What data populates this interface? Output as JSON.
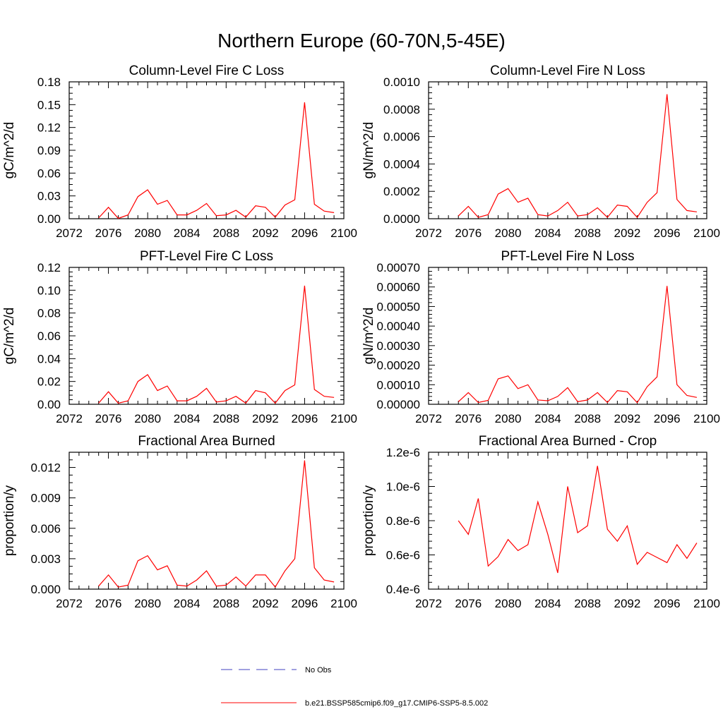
{
  "title": "Northern Europe (60-70N,5-45E)",
  "legend": {
    "placement": "bottom",
    "entries": [
      {
        "label": "No Obs",
        "color": "#4040c0",
        "style": "dashed"
      },
      {
        "label": "b.e21.BSSP585cmip6.f09_g17.CMIP6-SSP5-8.5.002",
        "color": "#ff0000",
        "style": "solid"
      }
    ]
  },
  "chart_data": [
    {
      "type": "line",
      "title": "Column-Level Fire C Loss",
      "ylabel": "gC/m^2/d",
      "xlim": [
        2072,
        2100
      ],
      "ylim": [
        0,
        0.18
      ],
      "xticks": [
        "2072",
        "2076",
        "2080",
        "2084",
        "2088",
        "2092",
        "2096",
        "2100"
      ],
      "yticks": [
        "0.00",
        "0.03",
        "0.06",
        "0.09",
        "0.12",
        "0.15",
        "0.18"
      ],
      "yminor": 3,
      "color": "#ff0000",
      "x": [
        2075,
        2076,
        2077,
        2078,
        2079,
        2080,
        2081,
        2082,
        2083,
        2084,
        2085,
        2086,
        2087,
        2088,
        2089,
        2090,
        2091,
        2092,
        2093,
        2094,
        2095,
        2096,
        2097,
        2098,
        2099
      ],
      "y": [
        0.001,
        0.015,
        0.0005,
        0.005,
        0.029,
        0.038,
        0.019,
        0.024,
        0.005,
        0.005,
        0.011,
        0.02,
        0.004,
        0.005,
        0.011,
        0.002,
        0.017,
        0.015,
        0.002,
        0.018,
        0.025,
        0.153,
        0.019,
        0.01,
        0.008
      ]
    },
    {
      "type": "line",
      "title": "Column-Level Fire N Loss",
      "ylabel": "gN/m^2/d",
      "xlim": [
        2072,
        2100
      ],
      "ylim": [
        0,
        0.001
      ],
      "xticks": [
        "2072",
        "2076",
        "2080",
        "2084",
        "2088",
        "2092",
        "2096",
        "2100"
      ],
      "yticks": [
        "0.0000",
        "0.0002",
        "0.0004",
        "0.0006",
        "0.0008",
        "0.0010"
      ],
      "yminor": 4,
      "color": "#ff0000",
      "x": [
        2075,
        2076,
        2077,
        2078,
        2079,
        2080,
        2081,
        2082,
        2083,
        2084,
        2085,
        2086,
        2087,
        2088,
        2089,
        2090,
        2091,
        2092,
        2093,
        2094,
        2095,
        2096,
        2097,
        2098,
        2099
      ],
      "y": [
        2e-05,
        9e-05,
        1e-05,
        3e-05,
        0.00018,
        0.00022,
        0.00012,
        0.00015,
        3e-05,
        2e-05,
        6e-05,
        0.00012,
        2e-05,
        3e-05,
        8e-05,
        1e-05,
        0.0001,
        9e-05,
        1e-05,
        0.00012,
        0.00019,
        0.00091,
        0.00014,
        6e-05,
        5e-05
      ]
    },
    {
      "type": "line",
      "title": "PFT-Level Fire C Loss",
      "ylabel": "gC/m^2/d",
      "xlim": [
        2072,
        2100
      ],
      "ylim": [
        0,
        0.12
      ],
      "xticks": [
        "2072",
        "2076",
        "2080",
        "2084",
        "2088",
        "2092",
        "2096",
        "2100"
      ],
      "yticks": [
        "0.00",
        "0.02",
        "0.04",
        "0.06",
        "0.08",
        "0.10",
        "0.12"
      ],
      "yminor": 4,
      "color": "#ff0000",
      "x": [
        2075,
        2076,
        2077,
        2078,
        2079,
        2080,
        2081,
        2082,
        2083,
        2084,
        2085,
        2086,
        2087,
        2088,
        2089,
        2090,
        2091,
        2092,
        2093,
        2094,
        2095,
        2096,
        2097,
        2098,
        2099
      ],
      "y": [
        0.001,
        0.011,
        0.001,
        0.003,
        0.02,
        0.026,
        0.012,
        0.016,
        0.003,
        0.003,
        0.007,
        0.014,
        0.002,
        0.003,
        0.007,
        0.001,
        0.012,
        0.01,
        0.001,
        0.012,
        0.017,
        0.104,
        0.013,
        0.007,
        0.006
      ]
    },
    {
      "type": "line",
      "title": "PFT-Level Fire N Loss",
      "ylabel": "gN/m^2/d",
      "xlim": [
        2072,
        2100
      ],
      "ylim": [
        0,
        0.0007
      ],
      "xticks": [
        "2072",
        "2076",
        "2080",
        "2084",
        "2088",
        "2092",
        "2096",
        "2100"
      ],
      "yticks": [
        "0.00000",
        "0.00010",
        "0.00020",
        "0.00030",
        "0.00040",
        "0.00050",
        "0.00060",
        "0.00070"
      ],
      "yminor": 4,
      "color": "#ff0000",
      "x": [
        2075,
        2076,
        2077,
        2078,
        2079,
        2080,
        2081,
        2082,
        2083,
        2084,
        2085,
        2086,
        2087,
        2088,
        2089,
        2090,
        2091,
        2092,
        2093,
        2094,
        2095,
        2096,
        2097,
        2098,
        2099
      ],
      "y": [
        1.3e-05,
        6e-05,
        9e-06,
        2e-05,
        0.00013,
        0.000145,
        8e-05,
        0.0001,
        2.2e-05,
        1.8e-05,
        4e-05,
        8.5e-05,
        1.3e-05,
        2.2e-05,
        6e-05,
        9e-06,
        7e-05,
        6.4e-05,
        8e-06,
        9e-05,
        0.00014,
        0.000605,
        0.0001,
        4.5e-05,
        3.5e-05
      ]
    },
    {
      "type": "line",
      "title": "Fractional Area Burned",
      "ylabel": "proportion/y",
      "xlim": [
        2072,
        2100
      ],
      "ylim": [
        0,
        0.0135
      ],
      "xticks": [
        "2072",
        "2076",
        "2080",
        "2084",
        "2088",
        "2092",
        "2096",
        "2100"
      ],
      "yticks": [
        "0.000",
        "0.003",
        "0.006",
        "0.009",
        "0.012"
      ],
      "ytickvals": [
        0,
        0.003,
        0.006,
        0.009,
        0.012
      ],
      "yminor": 3,
      "color": "#ff0000",
      "x": [
        2075,
        2076,
        2077,
        2078,
        2079,
        2080,
        2081,
        2082,
        2083,
        2084,
        2085,
        2086,
        2087,
        2088,
        2089,
        2090,
        2091,
        2092,
        2093,
        2094,
        2095,
        2096,
        2097,
        2098,
        2099
      ],
      "y": [
        0.0003,
        0.0014,
        0.0002,
        0.0004,
        0.0028,
        0.0033,
        0.0019,
        0.0023,
        0.0004,
        0.0003,
        0.0009,
        0.0018,
        0.0003,
        0.0004,
        0.0012,
        0.0003,
        0.0014,
        0.0014,
        0.0002,
        0.0018,
        0.003,
        0.0127,
        0.0021,
        0.0009,
        0.0007
      ]
    },
    {
      "type": "line",
      "title": "Fractional Area Burned - Crop",
      "ylabel": "proportion/y",
      "xlim": [
        2072,
        2100
      ],
      "ylim": [
        4e-07,
        1.2e-06
      ],
      "xticks": [
        "2072",
        "2076",
        "2080",
        "2084",
        "2088",
        "2092",
        "2096",
        "2100"
      ],
      "yticks": [
        "0.4e-6",
        "0.6e-6",
        "0.8e-6",
        "1.0e-6",
        "1.2e-6"
      ],
      "yminor": 4,
      "color": "#ff0000",
      "x": [
        2075,
        2076,
        2077,
        2078,
        2079,
        2080,
        2081,
        2082,
        2083,
        2084,
        2085,
        2086,
        2087,
        2088,
        2089,
        2090,
        2091,
        2092,
        2093,
        2094,
        2095,
        2096,
        2097,
        2098,
        2099
      ],
      "y": [
        8e-07,
        7.2e-07,
        9.3e-07,
        5.35e-07,
        5.9e-07,
        6.9e-07,
        6.25e-07,
        6.6e-07,
        9.1e-07,
        7.2e-07,
        4.95e-07,
        1e-06,
        7.3e-07,
        7.7e-07,
        1.12e-06,
        7.5e-07,
        6.8e-07,
        7.7e-07,
        5.45e-07,
        6.15e-07,
        5.85e-07,
        5.55e-07,
        6.6e-07,
        5.8e-07,
        6.7e-07
      ]
    }
  ]
}
